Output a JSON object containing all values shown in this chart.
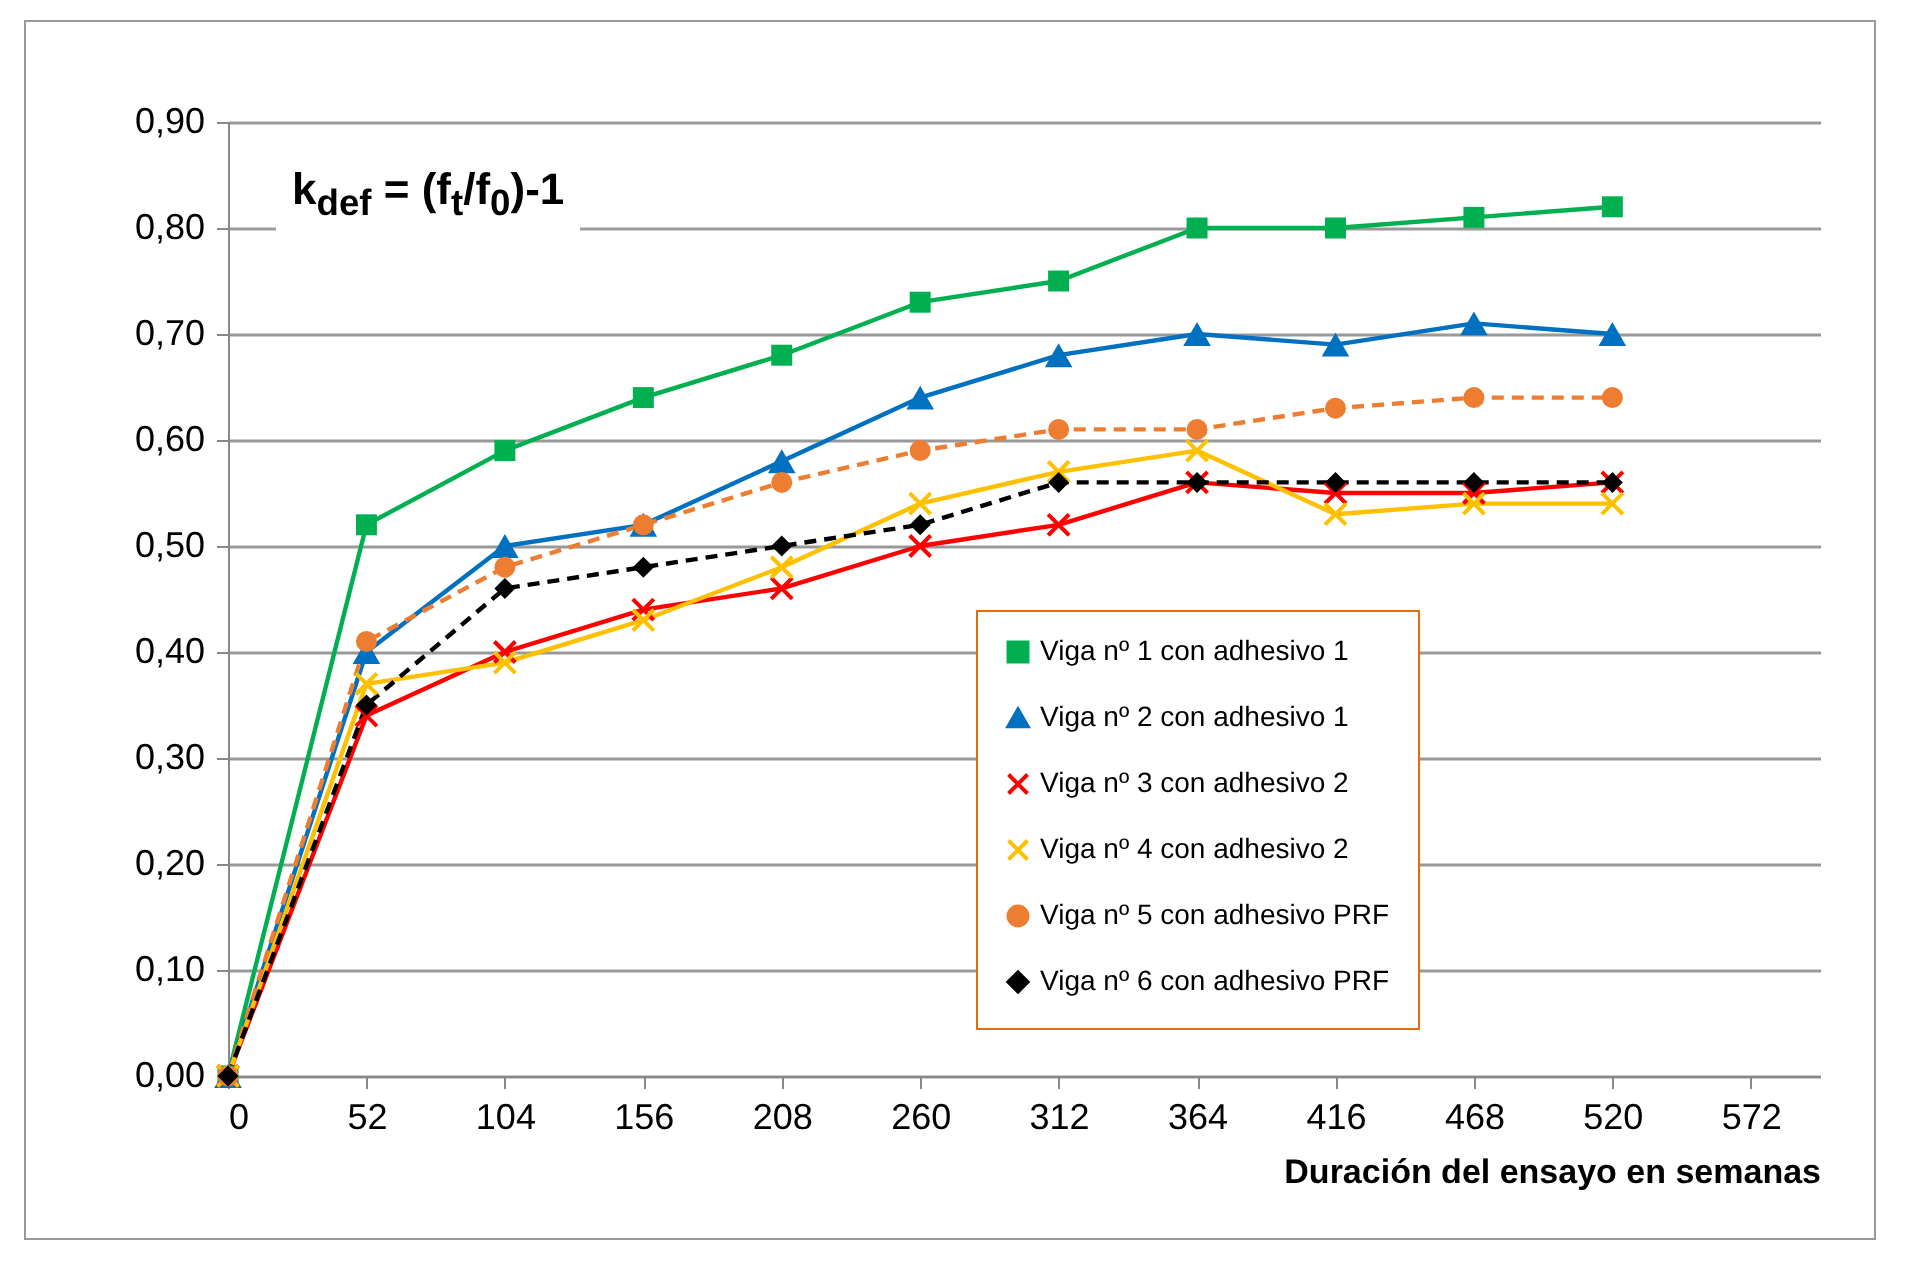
{
  "chart_data": {
    "type": "line",
    "xlabel": "Duración del ensayo en semanas",
    "annotations": [
      "k$_{def}$ = (f$_{t}$/f$_{0}$)-1"
    ],
    "x": [
      0,
      52,
      104,
      156,
      208,
      260,
      312,
      364,
      416,
      468,
      520
    ],
    "xlim": [
      0,
      598
    ],
    "xticks": [
      0,
      52,
      104,
      156,
      208,
      260,
      312,
      364,
      416,
      468,
      520,
      572
    ],
    "ylim": [
      0,
      0.9
    ],
    "yticks": [
      {
        "value": 0,
        "label": "0,00"
      },
      {
        "value": 0.1,
        "label": "0,10"
      },
      {
        "value": 0.2,
        "label": "0,20"
      },
      {
        "value": 0.3,
        "label": "0,30"
      },
      {
        "value": 0.4,
        "label": "0,40"
      },
      {
        "value": 0.5,
        "label": "0,50"
      },
      {
        "value": 0.6,
        "label": "0,60"
      },
      {
        "value": 0.7,
        "label": "0,70"
      },
      {
        "value": 0.8,
        "label": "0,80"
      },
      {
        "value": 0.9,
        "label": "0,90"
      }
    ],
    "grid": "y",
    "legend": "bottom right",
    "series": [
      {
        "name": "Viga nº 1 con adhesivo 1",
        "color": "#00b050",
        "marker": "square",
        "line_style": "solid",
        "values": [
          0,
          0.52,
          0.59,
          0.64,
          0.68,
          0.73,
          0.75,
          0.8,
          0.8,
          0.81,
          0.82
        ]
      },
      {
        "name": "Viga nº 2 con adhesivo 1",
        "color": "#0070c0",
        "marker": "triangle",
        "line_style": "solid",
        "values": [
          0,
          0.4,
          0.5,
          0.52,
          0.58,
          0.64,
          0.68,
          0.7,
          0.69,
          0.71,
          0.7
        ]
      },
      {
        "name": "Viga nº 3 con adhesivo 2",
        "color": "#ff0000",
        "marker": "cross",
        "line_style": "solid",
        "values": [
          0,
          0.34,
          0.4,
          0.44,
          0.46,
          0.5,
          0.52,
          0.56,
          0.55,
          0.55,
          0.56
        ]
      },
      {
        "name": "Viga nº 4 con adhesivo 2",
        "color": "#ffc000",
        "marker": "cross",
        "line_style": "solid",
        "values": [
          0,
          0.37,
          0.39,
          0.43,
          0.48,
          0.54,
          0.57,
          0.59,
          0.53,
          0.54,
          0.54
        ]
      },
      {
        "name": "Viga nº 5 con adhesivo PRF",
        "color": "#ed7d31",
        "marker": "circle",
        "line_style": "dashed",
        "values": [
          0,
          0.41,
          0.48,
          0.52,
          0.56,
          0.59,
          0.61,
          0.61,
          0.63,
          0.64,
          0.64
        ]
      },
      {
        "name": "Viga nº 6 con adhesivo PRF",
        "color": "#000000",
        "marker": "diamond",
        "line_style": "dashed",
        "values": [
          0,
          0.35,
          0.46,
          0.48,
          0.5,
          0.52,
          0.56,
          0.56,
          0.56,
          0.56,
          0.56
        ]
      }
    ]
  }
}
